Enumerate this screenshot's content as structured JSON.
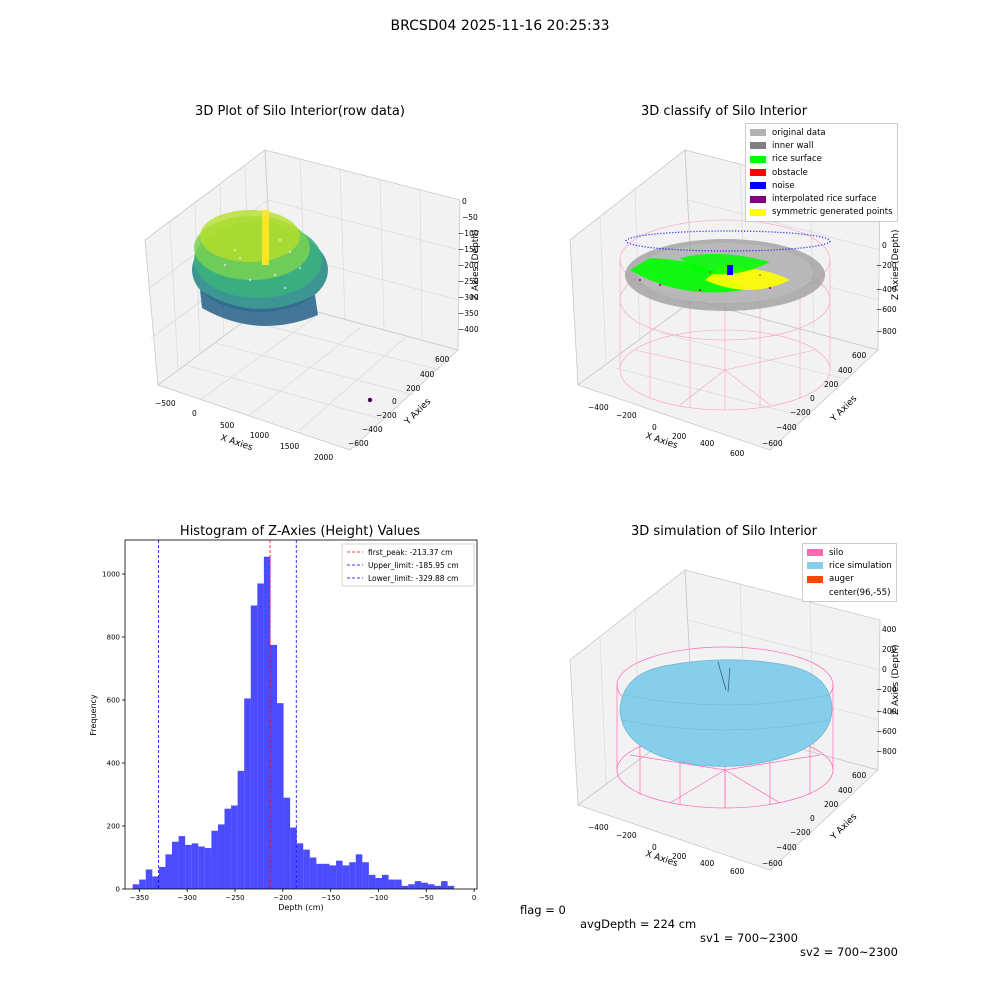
{
  "figure": {
    "suptitle": "BRCSD04 2025-11-16 20:25:33",
    "footer": {
      "flag": "flag = 0",
      "avg_depth": "avgDepth = 224 cm",
      "sv1": "sv1 = 700~2300",
      "sv2": "sv2 = 700~2300"
    }
  },
  "panels": {
    "raw": {
      "title": "3D Plot of Silo Interior(row data)",
      "xlabel": "X Axies",
      "ylabel": "Y Axies",
      "zlabel": "Z Axies (Depth)",
      "x_ticks": [
        "−500",
        "0",
        "500",
        "1000",
        "1500",
        "2000"
      ],
      "y_ticks": [
        "600",
        "400",
        "200",
        "0",
        "−200",
        "−400",
        "−600"
      ],
      "z_ticks": [
        "0",
        "−50",
        "−100",
        "−150",
        "−200",
        "−250",
        "−300",
        "−350",
        "−400"
      ]
    },
    "classify": {
      "title": "3D classify of Silo Interior",
      "xlabel": "X Axies",
      "ylabel": "Y Axies",
      "zlabel": "Z Axies (Depth)",
      "x_ticks": [
        "−400",
        "−200",
        "0",
        "200",
        "400",
        "600"
      ],
      "y_ticks": [
        "600",
        "400",
        "200",
        "0",
        "−200",
        "−400",
        "−600"
      ],
      "z_ticks": [
        "200",
        "0",
        "−200",
        "−400",
        "−600",
        "−800"
      ],
      "legend": [
        {
          "label": "original data",
          "color": "#b3b3b3"
        },
        {
          "label": "inner wall",
          "color": "#808080"
        },
        {
          "label": "rice surface",
          "color": "#00ff00"
        },
        {
          "label": "obstacle",
          "color": "#ff0000"
        },
        {
          "label": "noise",
          "color": "#0000ff"
        },
        {
          "label": "interpolated rice surface",
          "color": "#800080"
        },
        {
          "label": "symmetric generated points",
          "color": "#ffff00"
        }
      ]
    },
    "simulation": {
      "title": "3D simulation of Silo Interior",
      "xlabel": "X Axies",
      "ylabel": "Y Axies",
      "zlabel": "Z Axies (Depth)",
      "x_ticks": [
        "−400",
        "−200",
        "0",
        "200",
        "400",
        "600"
      ],
      "y_ticks": [
        "600",
        "400",
        "200",
        "0",
        "−200",
        "−400",
        "−600"
      ],
      "z_ticks": [
        "400",
        "200",
        "0",
        "−200",
        "−400",
        "−600",
        "−800"
      ],
      "legend": [
        {
          "label": "silo",
          "color": "#ff69b4"
        },
        {
          "label": "rice simulation",
          "color": "#87ceeb"
        },
        {
          "label": "auger",
          "color": "#ff4500"
        },
        {
          "label": "center(96,-55)",
          "color": ""
        }
      ]
    }
  },
  "chart_data": {
    "type": "bar",
    "title": "Histogram of Z-Axies (Height) Values",
    "xlabel": "Depth (cm)",
    "ylabel": "Frequency",
    "xlim": [
      -365,
      3
    ],
    "ylim": [
      0,
      1108
    ],
    "x_ticks": [
      -350,
      -300,
      -250,
      -200,
      -150,
      -100,
      -50,
      0
    ],
    "y_ticks": [
      0,
      200,
      400,
      600,
      800,
      1000
    ],
    "bar_color": "#0000ff",
    "bins_start": -357,
    "bin_width": 6.86,
    "values": [
      15,
      30,
      62,
      40,
      70,
      110,
      150,
      168,
      140,
      145,
      135,
      130,
      185,
      205,
      255,
      265,
      375,
      605,
      900,
      970,
      1055,
      775,
      590,
      290,
      195,
      145,
      125,
      100,
      80,
      80,
      75,
      90,
      75,
      85,
      110,
      85,
      45,
      35,
      45,
      30,
      30,
      10,
      15,
      25,
      20,
      15,
      10,
      25,
      10
    ],
    "vlines": [
      {
        "label": "first_peak: -213.37 cm",
        "x": -213.37,
        "color": "#ff0000"
      },
      {
        "label": "Upper_limit: -185.95 cm",
        "x": -185.95,
        "color": "#0000ff"
      },
      {
        "label": "Lower_limit: -329.88 cm",
        "x": -329.88,
        "color": "#0000ff"
      }
    ],
    "legend_position": "top-right"
  }
}
